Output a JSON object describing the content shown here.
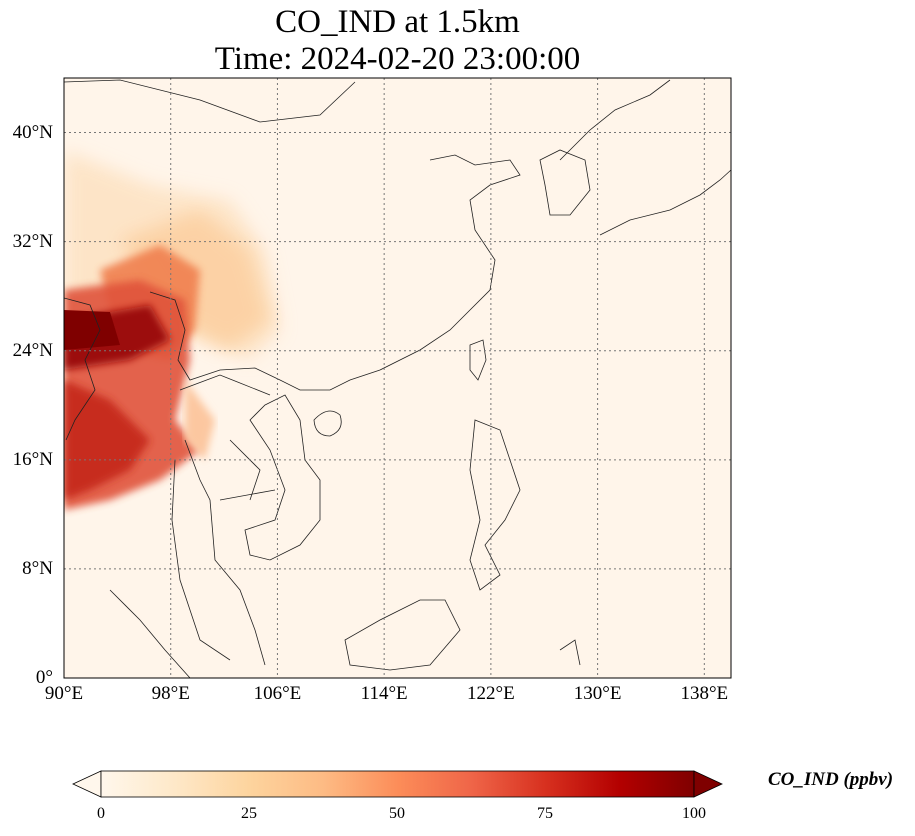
{
  "title": {
    "line1": "CO_IND at 1.5km",
    "line2": "Time: 2024-02-20 23:00:00"
  },
  "map": {
    "projection": "PlateCarree",
    "lon_range": [
      90,
      140
    ],
    "lat_range": [
      0,
      44
    ],
    "gridlines": "dotted",
    "lat_ticks": [
      {
        "value": 0,
        "label": "0°"
      },
      {
        "value": 8,
        "label": "8°N"
      },
      {
        "value": 16,
        "label": "16°N"
      },
      {
        "value": 24,
        "label": "24°N"
      },
      {
        "value": 32,
        "label": "32°N"
      },
      {
        "value": 40,
        "label": "40°N"
      }
    ],
    "lon_ticks": [
      {
        "value": 90,
        "label": "90°E"
      },
      {
        "value": 98,
        "label": "98°E"
      },
      {
        "value": 106,
        "label": "106°E"
      },
      {
        "value": 114,
        "label": "114°E"
      },
      {
        "value": 122,
        "label": "122°E"
      },
      {
        "value": 130,
        "label": "130°E"
      },
      {
        "value": 138,
        "label": "138°E"
      }
    ],
    "colormap": "OrRd"
  },
  "colorbar": {
    "label": "CO_IND (ppbv)",
    "min": 0,
    "max": 100,
    "extend": "both",
    "ticks": [
      "0",
      "25",
      "50",
      "75",
      "100"
    ],
    "colors": [
      "#fff7ec",
      "#fee8c8",
      "#fdd49e",
      "#fdbb84",
      "#fc8d59",
      "#ef6548",
      "#d7301f",
      "#b30000",
      "#7f0000"
    ]
  }
}
